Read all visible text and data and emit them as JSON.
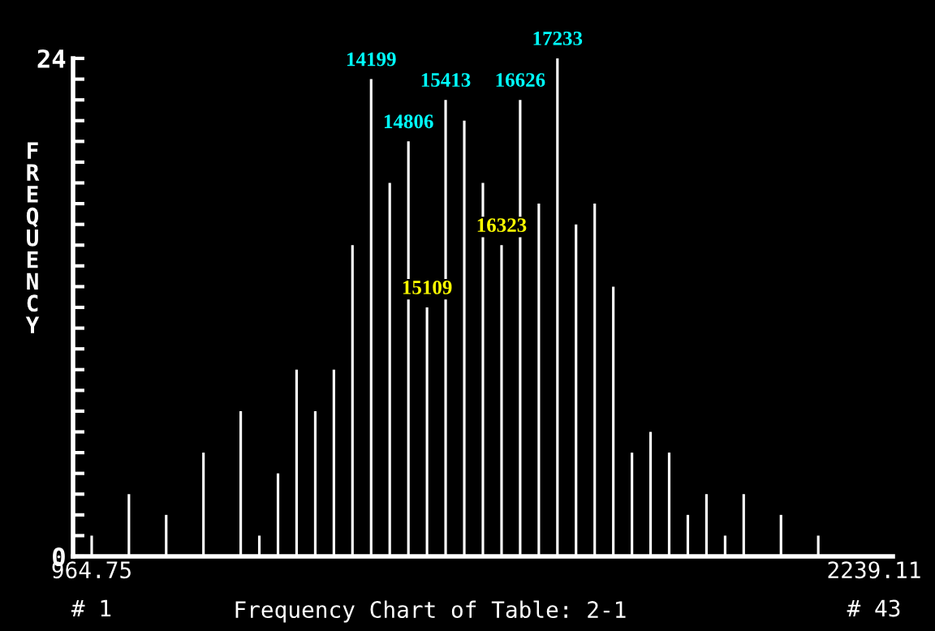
{
  "chart_data": {
    "type": "bar",
    "title": "Frequency Chart of Table: 2-1",
    "ylabel": "FREQUENCY",
    "x": [
      964.75,
      995.1,
      1025.4,
      1055.8,
      1086.1,
      1116.5,
      1146.8,
      1177.1,
      1207.5,
      1237.8,
      1268.2,
      1298.5,
      1328.9,
      1359.2,
      1389.5,
      1419.9,
      1450.2,
      1480.6,
      1510.9,
      1541.2,
      1571.6,
      1601.9,
      1632.3,
      1662.6,
      1693.0,
      1723.3,
      1753.6,
      1784.0,
      1814.3,
      1844.7,
      1875.0,
      1905.3,
      1935.7,
      1966.0,
      1996.4,
      2026.7,
      2057.1,
      2087.4,
      2117.7,
      2148.1,
      2178.4,
      2208.8,
      2239.11
    ],
    "series": [
      {
        "color": "#ffffff",
        "values": [
          1,
          0,
          3,
          0,
          2,
          0,
          5,
          0,
          7,
          1,
          4,
          9,
          7,
          9,
          15,
          23,
          18,
          20,
          12,
          22,
          21,
          18,
          15,
          22,
          17,
          24,
          16,
          17,
          13,
          5,
          6,
          5,
          2,
          3,
          1,
          3,
          0,
          2,
          0,
          1,
          0,
          0,
          0
        ]
      }
    ],
    "annotations": [
      {
        "text": "14199",
        "x": 1419.9,
        "y": 23
      },
      {
        "text": "14806",
        "x": 1480.6,
        "y": 20
      },
      {
        "text": "15109",
        "x": 1510.9,
        "y": 12
      },
      {
        "text": "15413",
        "x": 1541.2,
        "y": 22
      },
      {
        "text": "16323",
        "x": 1632.3,
        "y": 15
      },
      {
        "text": "16626",
        "x": 1662.6,
        "y": 22
      },
      {
        "text": "17233",
        "x": 1723.3,
        "y": 24
      },
      "# 1",
      "# 43"
    ],
    "xlim": [
      934.4,
      2269.5
    ],
    "xticks": [
      964.75,
      2239.11
    ],
    "ylim": [
      0,
      24
    ],
    "yticks": [
      0,
      {
        "value": 1,
        "label": null
      },
      {
        "value": 2,
        "label": null
      },
      {
        "value": 3,
        "label": null
      },
      {
        "value": 4,
        "label": null
      },
      {
        "value": 5,
        "label": null
      },
      {
        "value": 6,
        "label": null
      },
      {
        "value": 7,
        "label": null
      },
      {
        "value": 8,
        "label": null
      },
      {
        "value": 9,
        "label": null
      },
      {
        "value": 10,
        "label": null
      },
      {
        "value": 11,
        "label": null
      },
      {
        "value": 12,
        "label": null
      },
      {
        "value": 13,
        "label": null
      },
      {
        "value": 14,
        "label": null
      },
      {
        "value": 15,
        "label": null
      },
      {
        "value": 16,
        "label": null
      },
      {
        "value": 17,
        "label": null
      },
      {
        "value": 18,
        "label": null
      },
      {
        "value": 19,
        "label": null
      },
      {
        "value": 20,
        "label": null
      },
      {
        "value": 21,
        "label": null
      },
      {
        "value": 22,
        "label": null
      },
      {
        "value": 23,
        "label": null
      },
      24
    ],
    "grid": false,
    "legend": false
  }
}
